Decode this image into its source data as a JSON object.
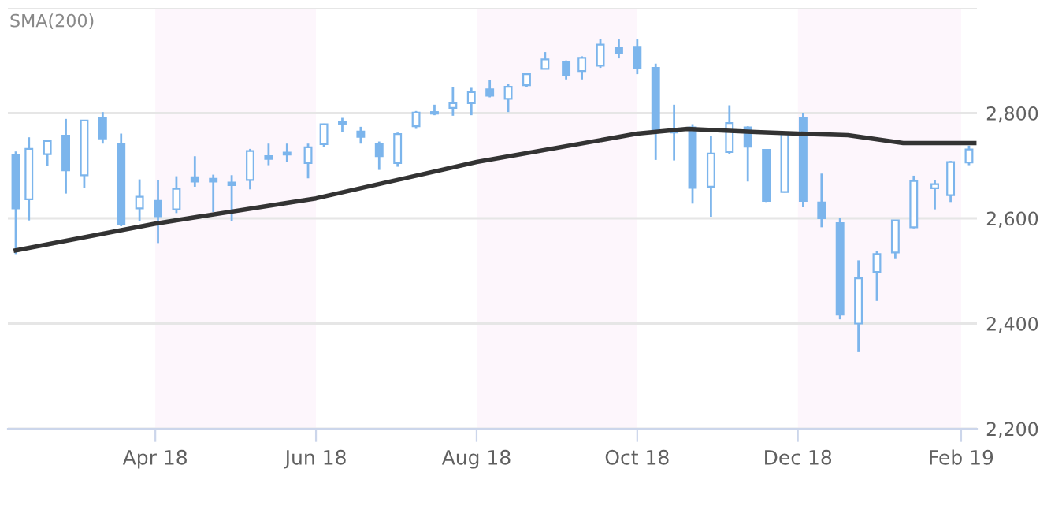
{
  "chart_data": {
    "type": "candlestick",
    "x": [
      "2018-02-07",
      "2018-02-12",
      "2018-02-19",
      "2018-02-26",
      "2018-03-05",
      "2018-03-12",
      "2018-03-19",
      "2018-03-26",
      "2018-04-02",
      "2018-04-09",
      "2018-04-16",
      "2018-04-23",
      "2018-04-30",
      "2018-05-07",
      "2018-05-14",
      "2018-05-21",
      "2018-05-29",
      "2018-06-04",
      "2018-06-11",
      "2018-06-18",
      "2018-06-25",
      "2018-07-02",
      "2018-07-09",
      "2018-07-16",
      "2018-07-23",
      "2018-07-30",
      "2018-08-06",
      "2018-08-13",
      "2018-08-20",
      "2018-08-27",
      "2018-09-04",
      "2018-09-10",
      "2018-09-17",
      "2018-09-24",
      "2018-10-01",
      "2018-10-08",
      "2018-10-15",
      "2018-10-22",
      "2018-10-29",
      "2018-11-05",
      "2018-11-12",
      "2018-11-19",
      "2018-11-26",
      "2018-12-03",
      "2018-12-10",
      "2018-12-17",
      "2018-12-24",
      "2018-12-31",
      "2019-01-07",
      "2019-01-14",
      "2019-01-22",
      "2019-01-28",
      "2019-02-04"
    ],
    "ohlc": [
      [
        2720,
        2727,
        2532,
        2619
      ],
      [
        2636,
        2754,
        2596,
        2732
      ],
      [
        2722,
        2747,
        2699,
        2747
      ],
      [
        2757,
        2789,
        2647,
        2691
      ],
      [
        2682,
        2787,
        2658,
        2786
      ],
      [
        2791,
        2802,
        2742,
        2752
      ],
      [
        2741,
        2761,
        2585,
        2588
      ],
      [
        2619,
        2674,
        2594,
        2641
      ],
      [
        2633,
        2672,
        2553,
        2604
      ],
      [
        2617,
        2680,
        2610,
        2656
      ],
      [
        2678,
        2718,
        2660,
        2670
      ],
      [
        2675,
        2683,
        2612,
        2670
      ],
      [
        2668,
        2682,
        2594,
        2663
      ],
      [
        2673,
        2732,
        2655,
        2728
      ],
      [
        2718,
        2742,
        2701,
        2713
      ],
      [
        2725,
        2742,
        2707,
        2721
      ],
      [
        2705,
        2742,
        2676,
        2735
      ],
      [
        2741,
        2780,
        2736,
        2779
      ],
      [
        2783,
        2791,
        2764,
        2780
      ],
      [
        2765,
        2774,
        2742,
        2755
      ],
      [
        2742,
        2746,
        2692,
        2718
      ],
      [
        2705,
        2763,
        2698,
        2760
      ],
      [
        2775,
        2804,
        2770,
        2801
      ],
      [
        2799,
        2816,
        2796,
        2802
      ],
      [
        2810,
        2849,
        2795,
        2819
      ],
      [
        2819,
        2848,
        2796,
        2840
      ],
      [
        2845,
        2863,
        2830,
        2833
      ],
      [
        2827,
        2855,
        2802,
        2850
      ],
      [
        2853,
        2877,
        2850,
        2874
      ],
      [
        2884,
        2916,
        2884,
        2902
      ],
      [
        2897,
        2900,
        2864,
        2872
      ],
      [
        2880,
        2908,
        2864,
        2905
      ],
      [
        2890,
        2941,
        2886,
        2930
      ],
      [
        2925,
        2940,
        2904,
        2914
      ],
      [
        2926,
        2940,
        2874,
        2885
      ],
      [
        2886,
        2894,
        2711,
        2767
      ],
      [
        2763,
        2816,
        2710,
        2768
      ],
      [
        2773,
        2779,
        2628,
        2658
      ],
      [
        2660,
        2756,
        2603,
        2723
      ],
      [
        2726,
        2815,
        2722,
        2781
      ],
      [
        2773,
        2775,
        2670,
        2736
      ],
      [
        2730,
        2730,
        2631,
        2633
      ],
      [
        2650,
        2760,
        2649,
        2760
      ],
      [
        2790,
        2800,
        2621,
        2633
      ],
      [
        2630,
        2685,
        2583,
        2600
      ],
      [
        2591,
        2601,
        2408,
        2417
      ],
      [
        2400,
        2520,
        2347,
        2486
      ],
      [
        2498,
        2538,
        2443,
        2532
      ],
      [
        2535,
        2597,
        2524,
        2596
      ],
      [
        2583,
        2681,
        2581,
        2671
      ],
      [
        2657,
        2672,
        2617,
        2665
      ],
      [
        2644,
        2709,
        2631,
        2707
      ],
      [
        2706,
        2738,
        2701,
        2731
      ]
    ],
    "color": "#7cb5ec",
    "series": [
      {
        "type": "line",
        "color": "#333333",
        "x": [
          "2018-02-07",
          "2018-04-01",
          "2018-06-01",
          "2018-08-01",
          "2018-10-01",
          "2018-10-20",
          "2018-11-15",
          "2018-12-01",
          "2018-12-20",
          "2019-01-10",
          "2019-02-06"
        ],
        "values": [
          2539,
          2590,
          2638,
          2707,
          2761,
          2770,
          2764,
          2761,
          2758,
          2743,
          2743
        ]
      }
    ],
    "bands": [
      {
        "axis": "x",
        "from": "2018-04-01",
        "to": "2018-06-01",
        "color": "#fdf6fc"
      },
      {
        "axis": "x",
        "from": "2018-08-01",
        "to": "2018-10-01",
        "color": "#fdf6fc"
      },
      {
        "axis": "x",
        "from": "2018-12-01",
        "to": "2019-02-01",
        "color": "#fdf6fc"
      }
    ],
    "annotations": [
      "SMA(200)"
    ],
    "xlim": [
      "2018-02-04",
      "2019-02-07"
    ],
    "xticks": [
      {
        "value": "2018-04-01",
        "label": "Apr 18"
      },
      {
        "value": "2018-06-01",
        "label": "Jun 18"
      },
      {
        "value": "2018-08-01",
        "label": "Aug 18"
      },
      {
        "value": "2018-10-01",
        "label": "Oct 18"
      },
      {
        "value": "2018-12-01",
        "label": "Dec 18"
      },
      {
        "value": "2019-02-01",
        "label": "Feb 19"
      }
    ],
    "ylim": [
      2200,
      3000
    ],
    "yticks": [
      {
        "value": 2200,
        "label": "2,200"
      },
      {
        "value": 2400,
        "label": "2,400"
      },
      {
        "value": 2600,
        "label": "2,600"
      },
      {
        "value": 2800,
        "label": "2,800"
      },
      {
        "value": 3000,
        "label": null
      }
    ],
    "grid": "y",
    "legend": false
  }
}
